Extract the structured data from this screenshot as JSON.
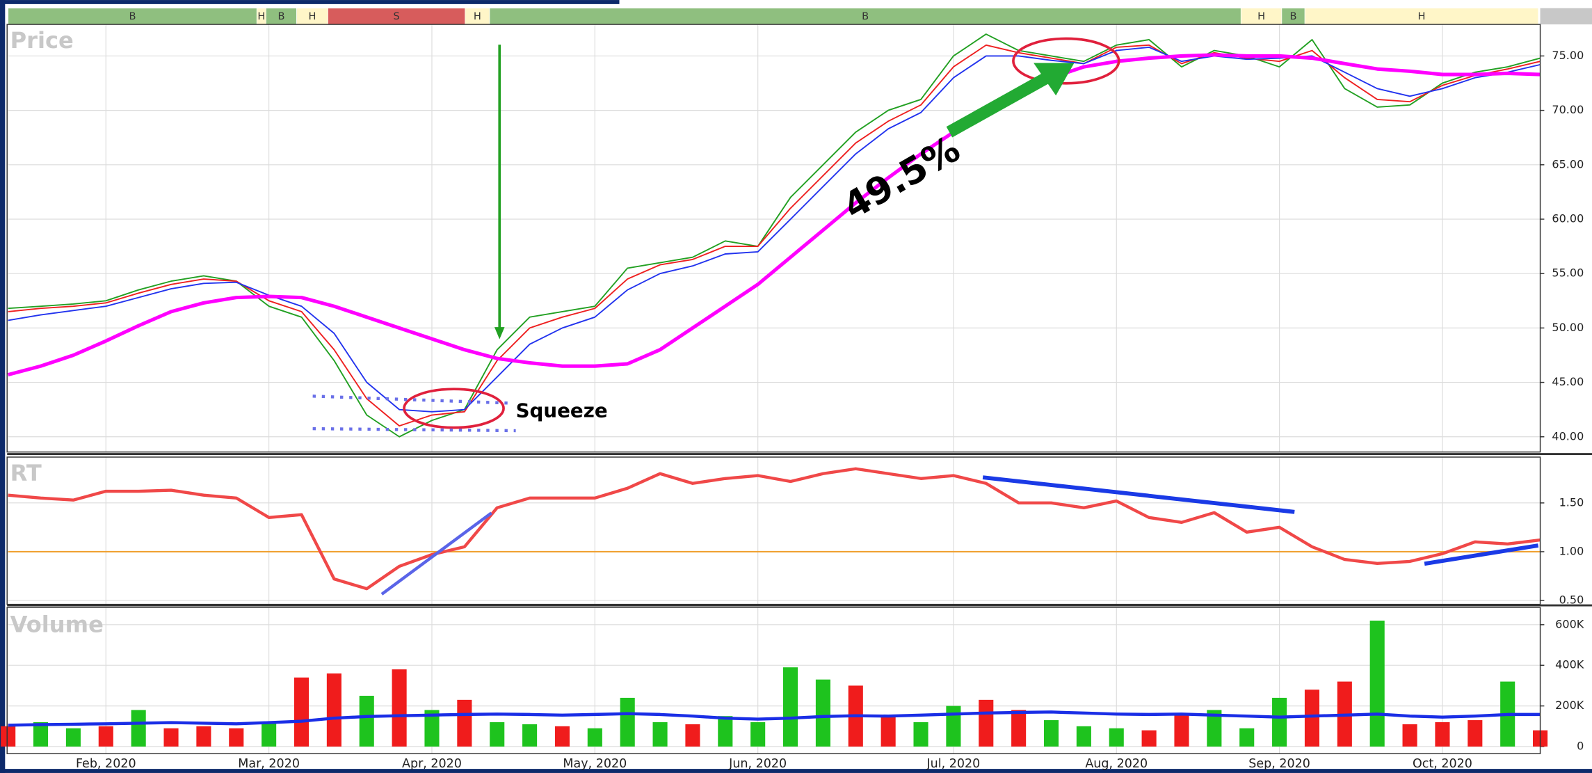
{
  "chart_data": [
    {
      "type": "line",
      "title": "Price",
      "categories": [
        null,
        null,
        null,
        "Feb, 2020",
        null,
        null,
        null,
        null,
        "Mar, 2020",
        null,
        null,
        null,
        null,
        "Apr, 2020",
        null,
        null,
        null,
        null,
        "May, 2020",
        null,
        null,
        null,
        null,
        "Jun, 2020",
        null,
        null,
        null,
        null,
        null,
        "Jul, 2020",
        null,
        null,
        null,
        null,
        "Aug, 2020",
        null,
        null,
        null,
        null,
        "Sep, 2020",
        null,
        null,
        null,
        null,
        "Oct, 2020",
        null,
        null,
        null
      ],
      "ylim": [
        38.6,
        77.9
      ],
      "yticks": [
        {
          "value": 40,
          "label": "40.00"
        },
        {
          "value": 45,
          "label": "45.00"
        },
        {
          "value": 50,
          "label": "50.00"
        },
        {
          "value": 55,
          "label": "55.00"
        },
        {
          "value": 60,
          "label": "60.00"
        },
        {
          "value": 65,
          "label": "65.00"
        },
        {
          "value": 70,
          "label": "70.00"
        },
        {
          "value": 75,
          "label": "75.00"
        }
      ],
      "grid": true,
      "series": [
        {
          "color": "#22a022",
          "width": 1.3,
          "values": [
            51.8,
            52,
            52.2,
            52.5,
            53.5,
            54.3,
            54.8,
            54.3,
            52,
            51,
            47,
            42,
            40,
            41.5,
            42.5,
            48,
            51,
            51.5,
            52,
            55.5,
            56,
            56.5,
            58,
            57.5,
            62,
            65,
            68,
            70,
            71,
            75,
            77,
            75.5,
            75,
            74.5,
            76,
            76.5,
            74,
            75.5,
            75,
            74,
            76.5,
            72,
            70.3,
            70.5,
            72.5,
            73.5,
            74,
            74.8
          ]
        },
        {
          "color": "#ee2020",
          "width": 1.3,
          "values": [
            51.5,
            51.8,
            52,
            52.3,
            53.2,
            54,
            54.5,
            54.3,
            52.5,
            51.5,
            48,
            43.5,
            41,
            42,
            42.3,
            47,
            50,
            51,
            51.8,
            54.5,
            55.8,
            56.3,
            57.5,
            57.5,
            61,
            64,
            67,
            69,
            70.5,
            74,
            76,
            75.3,
            74.8,
            74.3,
            75.8,
            76,
            74.3,
            75.3,
            74.8,
            74.5,
            75.5,
            73,
            71,
            70.8,
            72.3,
            73.2,
            73.8,
            74.5
          ]
        },
        {
          "color": "#2233ee",
          "width": 1.3,
          "values": [
            50.7,
            51.2,
            51.6,
            52,
            52.8,
            53.6,
            54.1,
            54.2,
            53,
            52,
            49.5,
            45,
            42.5,
            42.3,
            42.5,
            45.5,
            48.5,
            50,
            51,
            53.5,
            55,
            55.7,
            56.8,
            57,
            60,
            63,
            66,
            68.3,
            69.8,
            73,
            75,
            75,
            74.6,
            74.3,
            75.5,
            75.8,
            74.5,
            75,
            74.7,
            74.8,
            75,
            73.5,
            72,
            71.3,
            72,
            73,
            73.5,
            74.2
          ]
        },
        {
          "color": "#ff00ff",
          "width": 3.5,
          "values": [
            45.7,
            46.5,
            47.5,
            48.8,
            50.2,
            51.5,
            52.3,
            52.8,
            52.9,
            52.8,
            52,
            51,
            50,
            49,
            48,
            47.2,
            46.8,
            46.5,
            46.5,
            46.7,
            48,
            50,
            52,
            54,
            56.5,
            59,
            61.5,
            63.8,
            66,
            68,
            70,
            71.8,
            73,
            74,
            74.5,
            74.8,
            75,
            75.1,
            75,
            75,
            74.8,
            74.3,
            73.8,
            73.6,
            73.3,
            73.3,
            73.4,
            73.3
          ]
        }
      ],
      "signal_colors": {
        "B": "#8fbf7f",
        "H": "#fff6c8",
        "S": "#d75c5c"
      },
      "signals": [
        {
          "label": "B",
          "from": 0,
          "to": 7.63
        },
        {
          "label": "H",
          "from": 7.63,
          "to": 7.91
        },
        {
          "label": "B",
          "from": 7.91,
          "to": 8.85
        },
        {
          "label": "H",
          "from": 8.85,
          "to": 9.81
        },
        {
          "label": "S",
          "from": 9.81,
          "to": 14.02
        },
        {
          "label": "H",
          "from": 14.02,
          "to": 14.77
        },
        {
          "label": "B",
          "from": 14.77,
          "to": 37.82
        },
        {
          "label": "H",
          "from": 37.82,
          "to": 39.07
        },
        {
          "label": "B",
          "from": 39.07,
          "to": 39.78
        },
        {
          "label": "H",
          "from": 39.78,
          "to": 46.94
        }
      ],
      "annotations": [
        "Squeeze",
        "49.5%"
      ]
    },
    {
      "type": "line",
      "title": "RT",
      "ylim": [
        0.46,
        1.97
      ],
      "yticks": [
        {
          "value": 0.5,
          "label": "0.50"
        },
        {
          "value": 1,
          "label": "1.00"
        },
        {
          "value": 1.5,
          "label": "1.50"
        }
      ],
      "grid": true,
      "threshold": 1,
      "threshold_color": "#f0a030",
      "series": [
        {
          "color": "#f04848",
          "width": 3,
          "values": [
            1.58,
            1.55,
            1.53,
            1.62,
            1.62,
            1.63,
            1.58,
            1.55,
            1.35,
            1.38,
            0.72,
            0.62,
            0.85,
            0.97,
            1.05,
            1.45,
            1.55,
            1.55,
            1.55,
            1.65,
            1.8,
            1.7,
            1.75,
            1.78,
            1.72,
            1.8,
            1.85,
            1.8,
            1.75,
            1.78,
            1.7,
            1.5,
            1.5,
            1.45,
            1.52,
            1.35,
            1.3,
            1.4,
            1.2,
            1.25,
            1.05,
            0.92,
            0.88,
            0.9,
            0.98,
            1.1,
            1.08,
            1.12
          ]
        }
      ]
    },
    {
      "type": "bar",
      "title": "Volume",
      "ylim": [
        -35000,
        685000
      ],
      "yticks": [
        0,
        {
          "value": 200000,
          "label": "200K"
        },
        {
          "value": 400000,
          "label": "400K"
        },
        {
          "value": 600000,
          "label": "600K"
        }
      ],
      "grid": true,
      "values": [
        100000,
        120000,
        90000,
        100000,
        180000,
        90000,
        100000,
        90000,
        120000,
        340000,
        360000,
        250000,
        380000,
        180000,
        230000,
        120000,
        110000,
        100000,
        90000,
        240000,
        120000,
        110000,
        150000,
        120000,
        390000,
        330000,
        300000,
        150000,
        120000,
        200000,
        230000,
        180000,
        130000,
        100000,
        90000,
        80000,
        160000,
        180000,
        90000,
        240000,
        280000,
        320000,
        620000,
        110000,
        120000,
        130000,
        320000,
        80000
      ],
      "colors": [
        "#f01c1c",
        "#1ec31e",
        "#1ec31e",
        "#f01c1c",
        "#1ec31e",
        "#f01c1c",
        "#f01c1c",
        "#f01c1c",
        "#1ec31e",
        "#f01c1c",
        "#f01c1c",
        "#1ec31e",
        "#f01c1c",
        "#1ec31e",
        "#f01c1c",
        "#1ec31e",
        "#1ec31e",
        "#f01c1c",
        "#1ec31e",
        "#1ec31e",
        "#1ec31e",
        "#f01c1c",
        "#1ec31e",
        "#1ec31e",
        "#1ec31e",
        "#1ec31e",
        "#f01c1c",
        "#f01c1c",
        "#1ec31e",
        "#1ec31e",
        "#f01c1c",
        "#f01c1c",
        "#1ec31e",
        "#1ec31e",
        "#1ec31e",
        "#f01c1c",
        "#f01c1c",
        "#1ec31e",
        "#1ec31e",
        "#1ec31e",
        "#f01c1c",
        "#f01c1c",
        "#1ec31e",
        "#f01c1c",
        "#f01c1c",
        "#f01c1c",
        "#1ec31e",
        "#f01c1c"
      ],
      "series": [
        {
          "color": "#1a2ee6",
          "width": 3,
          "values": [
            105000,
            108000,
            110000,
            112000,
            115000,
            118000,
            115000,
            112000,
            118000,
            125000,
            140000,
            148000,
            152000,
            155000,
            158000,
            160000,
            158000,
            155000,
            158000,
            162000,
            158000,
            150000,
            140000,
            135000,
            140000,
            148000,
            152000,
            150000,
            155000,
            160000,
            165000,
            168000,
            170000,
            165000,
            160000,
            158000,
            160000,
            155000,
            150000,
            145000,
            150000,
            155000,
            160000,
            150000,
            145000,
            150000,
            158000,
            158000
          ]
        }
      ]
    }
  ]
}
